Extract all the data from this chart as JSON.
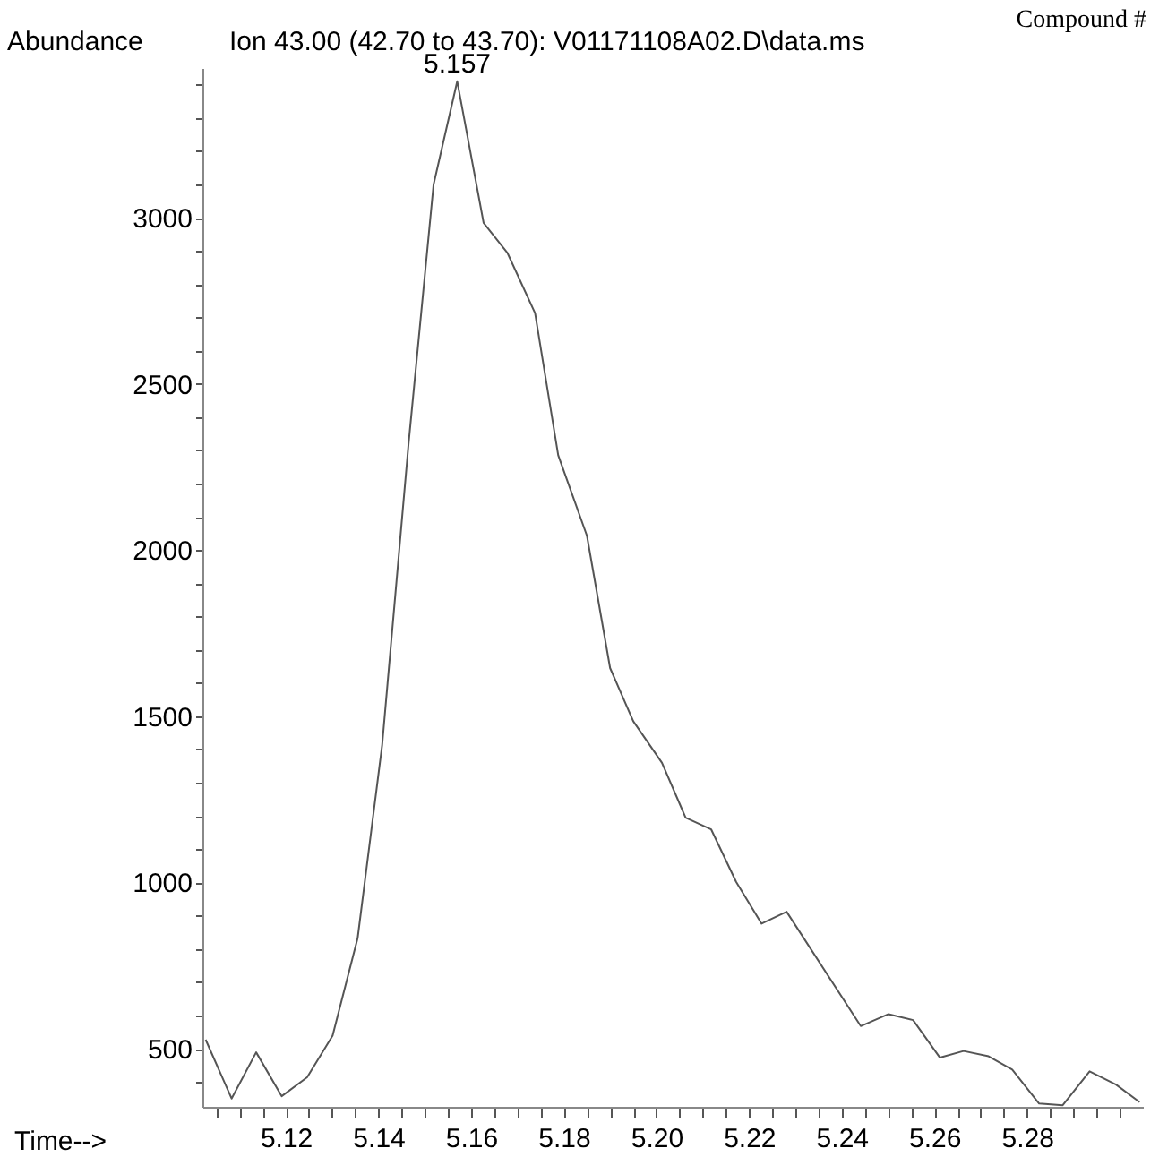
{
  "chart_data": {
    "type": "line",
    "title": "Ion  43.00 (42.70 to 43.70): V01171108A02.D\\data.ms",
    "xlabel": "Time-->",
    "ylabel": "Abundance",
    "annotations": [
      "Compound #",
      {
        "text": "5.157",
        "x": 5.157,
        "y": 3410
      }
    ],
    "x": [
      5.1027,
      5.1083,
      5.1136,
      5.1191,
      5.1246,
      5.1301,
      5.1355,
      5.1408,
      5.1465,
      5.1519,
      5.157,
      5.1627,
      5.1678,
      5.1738,
      5.1788,
      5.185,
      5.19,
      5.195,
      5.2012,
      5.2063,
      5.2118,
      5.2172,
      5.2227,
      5.2281,
      5.2441,
      5.2501,
      5.2554,
      5.2612,
      5.2663,
      5.2717,
      5.2768,
      5.2826,
      5.2877,
      5.2935,
      5.2992,
      5.3043
    ],
    "series": [
      {
        "color": "#555555",
        "values": [
          527,
          350,
          489,
          357,
          414,
          539,
          832,
          1414,
          2320,
          3100,
          3410,
          2984,
          2895,
          2713,
          2285,
          2043,
          1645,
          1485,
          1360,
          1195,
          1160,
          1002,
          876,
          912,
          568,
          604,
          586,
          473,
          493,
          477,
          437,
          335,
          330,
          432,
          392,
          339
        ]
      }
    ],
    "xlim": [
      5.102,
      5.305
    ],
    "ylim": [
      325,
      3450
    ],
    "xticks": [
      {
        "value": 5.105,
        "label": null
      },
      {
        "value": 5.11,
        "label": null
      },
      {
        "value": 5.115,
        "label": null
      },
      5.12,
      {
        "value": 5.125,
        "label": null
      },
      {
        "value": 5.13,
        "label": null
      },
      {
        "value": 5.135,
        "label": null
      },
      5.14,
      {
        "value": 5.145,
        "label": null
      },
      {
        "value": 5.15,
        "label": null
      },
      {
        "value": 5.155,
        "label": null
      },
      5.16,
      {
        "value": 5.165,
        "label": null
      },
      {
        "value": 5.17,
        "label": null
      },
      {
        "value": 5.175,
        "label": null
      },
      5.18,
      {
        "value": 5.185,
        "label": null
      },
      {
        "value": 5.19,
        "label": null
      },
      {
        "value": 5.195,
        "label": null
      },
      {
        "value": 5.2,
        "label": "5.20"
      },
      {
        "value": 5.205,
        "label": null
      },
      {
        "value": 5.21,
        "label": null
      },
      {
        "value": 5.215,
        "label": null
      },
      5.22,
      {
        "value": 5.225,
        "label": null
      },
      {
        "value": 5.23,
        "label": null
      },
      {
        "value": 5.235,
        "label": null
      },
      5.24,
      {
        "value": 5.245,
        "label": null
      },
      {
        "value": 5.25,
        "label": null
      },
      {
        "value": 5.255,
        "label": null
      },
      5.26,
      {
        "value": 5.265,
        "label": null
      },
      {
        "value": 5.27,
        "label": null
      },
      {
        "value": 5.275,
        "label": null
      },
      5.28,
      {
        "value": 5.285,
        "label": null
      },
      {
        "value": 5.29,
        "label": null
      },
      {
        "value": 5.295,
        "label": null
      },
      {
        "value": 5.3,
        "label": null
      }
    ],
    "yticks": [
      {
        "value": 400,
        "label": null
      },
      500,
      {
        "value": 600,
        "label": null
      },
      {
        "value": 700,
        "label": null
      },
      {
        "value": 800,
        "label": null
      },
      {
        "value": 900,
        "label": null
      },
      1000,
      {
        "value": 1100,
        "label": null
      },
      {
        "value": 1200,
        "label": null
      },
      {
        "value": 1300,
        "label": null
      },
      {
        "value": 1400,
        "label": null
      },
      1500,
      {
        "value": 1600,
        "label": null
      },
      {
        "value": 1700,
        "label": null
      },
      {
        "value": 1800,
        "label": null
      },
      {
        "value": 1900,
        "label": null
      },
      2000,
      {
        "value": 2100,
        "label": null
      },
      {
        "value": 2200,
        "label": null
      },
      {
        "value": 2300,
        "label": null
      },
      {
        "value": 2400,
        "label": null
      },
      2500,
      {
        "value": 2600,
        "label": null
      },
      {
        "value": 2700,
        "label": null
      },
      {
        "value": 2800,
        "label": null
      },
      {
        "value": 2900,
        "label": null
      },
      3000,
      {
        "value": 3100,
        "label": null
      },
      {
        "value": 3200,
        "label": null
      },
      {
        "value": 3300,
        "label": null
      },
      {
        "value": 3400,
        "label": null
      }
    ],
    "grid": false,
    "marker": "none",
    "line_style": "solid"
  }
}
